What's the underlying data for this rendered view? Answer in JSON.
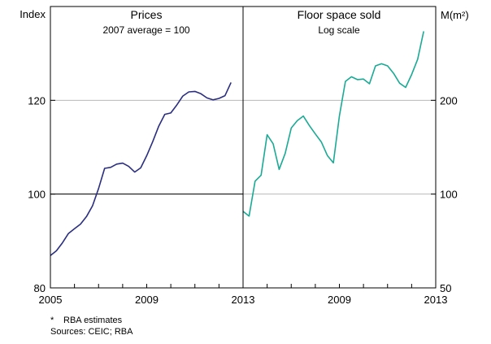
{
  "chart_data": [
    {
      "type": "line",
      "title": "Prices",
      "subtitle": "2007 average = 100",
      "ylabel": "Index",
      "ylim": [
        80,
        140
      ],
      "yticks": [
        80,
        100,
        120
      ],
      "xlim": [
        2005,
        2013
      ],
      "xticks": [
        2005,
        2009,
        2013
      ],
      "reference_line": 100,
      "color": "#2b2e7f",
      "series": [
        {
          "x": [
            2005.0,
            2005.25,
            2005.5,
            2005.75,
            2006.0,
            2006.25,
            2006.5,
            2006.75,
            2007.0,
            2007.25,
            2007.5,
            2007.75,
            2008.0,
            2008.25,
            2008.5,
            2008.75,
            2009.0,
            2009.25,
            2009.5,
            2009.75,
            2010.0,
            2010.25,
            2010.5,
            2010.75,
            2011.0,
            2011.25,
            2011.5,
            2011.75,
            2012.0,
            2012.25,
            2012.5
          ],
          "y": [
            86.9,
            87.9,
            89.6,
            91.6,
            92.6,
            93.6,
            95.2,
            97.5,
            101.2,
            105.5,
            105.7,
            106.4,
            106.6,
            105.9,
            104.7,
            105.6,
            108.2,
            111.2,
            114.5,
            117.0,
            117.3,
            119.0,
            120.9,
            121.8,
            121.9,
            121.4,
            120.5,
            120.1,
            120.4,
            121.0,
            123.8
          ]
        }
      ]
    },
    {
      "type": "line",
      "title": "Floor space sold",
      "subtitle": "Log scale",
      "ylabel": "M(m²)",
      "yscale": "log",
      "ylim": [
        50,
        400
      ],
      "yticks": [
        50,
        100,
        200
      ],
      "xlim": [
        2005,
        2013
      ],
      "xticks": [
        2009,
        2013
      ],
      "color": "#1aaa95",
      "series": [
        {
          "x": [
            2005.0,
            2005.25,
            2005.5,
            2005.75,
            2006.0,
            2006.25,
            2006.5,
            2006.75,
            2007.0,
            2007.25,
            2007.5,
            2007.75,
            2008.0,
            2008.25,
            2008.5,
            2008.75,
            2009.0,
            2009.25,
            2009.5,
            2009.75,
            2010.0,
            2010.25,
            2010.5,
            2010.75,
            2011.0,
            2011.25,
            2011.5,
            2011.75,
            2012.0,
            2012.25,
            2012.5
          ],
          "y": [
            88,
            85,
            110,
            115,
            155,
            145,
            120,
            135,
            163,
            172,
            178,
            166,
            156,
            147,
            133,
            126,
            178,
            230,
            238,
            233,
            234,
            226,
            258,
            262,
            258,
            244,
            227,
            220,
            242,
            271,
            333
          ]
        }
      ]
    }
  ],
  "notes": {
    "star": "*",
    "estimate": "RBA estimates",
    "sources": "Sources: CEIC; RBA"
  }
}
